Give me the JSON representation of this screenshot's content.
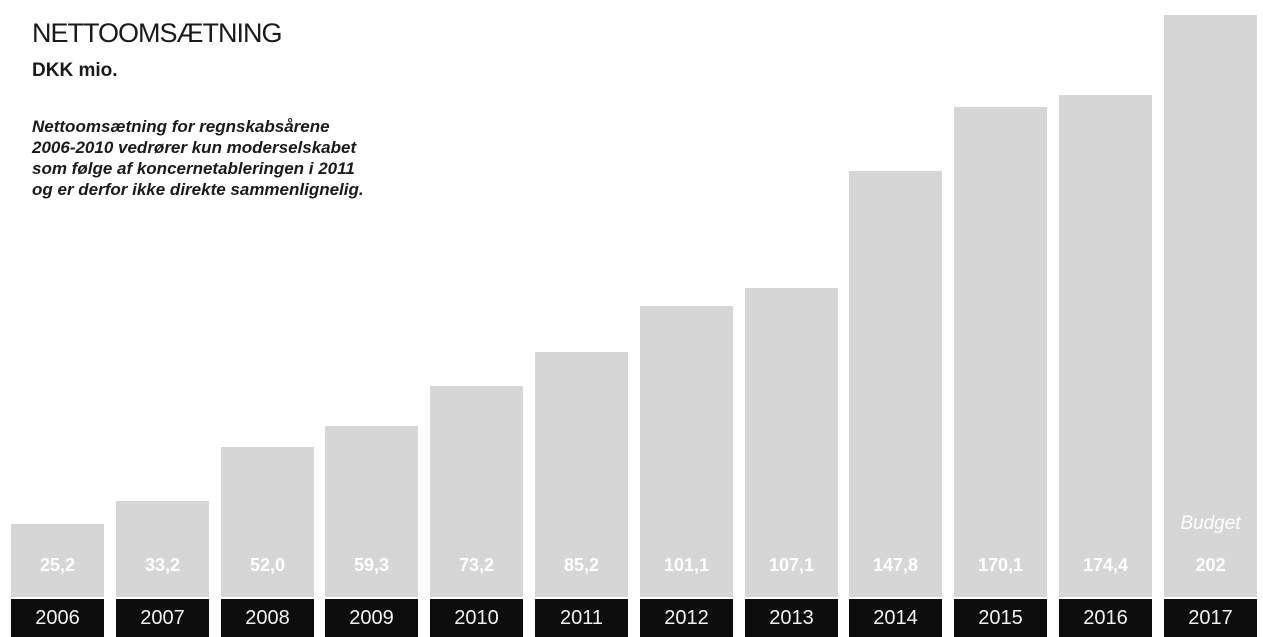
{
  "chart_data": {
    "type": "bar",
    "title": "NETTOOMSÆTNING",
    "subtitle": "DKK mio.",
    "note": [
      "Nettoomsætning for regnskabsårene",
      "2006-2010 vedrører kun moderselskabet",
      "som følge af koncernetableringen i 2011",
      "og er derfor ikke direkte sammenlignelig."
    ],
    "categories": [
      "2006",
      "2007",
      "2008",
      "2009",
      "2010",
      "2011",
      "2012",
      "2013",
      "2014",
      "2015",
      "2016",
      "2017"
    ],
    "values": [
      25.2,
      33.2,
      52.0,
      59.3,
      73.2,
      85.2,
      101.1,
      107.1,
      147.8,
      170.1,
      174.4,
      202
    ],
    "value_labels": [
      "25,2",
      "33,2",
      "52,0",
      "59,3",
      "73,2",
      "85,2",
      "101,1",
      "107,1",
      "147,8",
      "170,1",
      "174,4",
      "202"
    ],
    "bar_notes": [
      "",
      "",
      "",
      "",
      "",
      "",
      "",
      "",
      "",
      "",
      "",
      "Budget"
    ],
    "ylim": [
      0,
      202
    ],
    "grid": false,
    "colors": {
      "bar": "#d6d6d6",
      "label_bg": "#0d0d0d",
      "value_text": "#ffffff"
    }
  }
}
